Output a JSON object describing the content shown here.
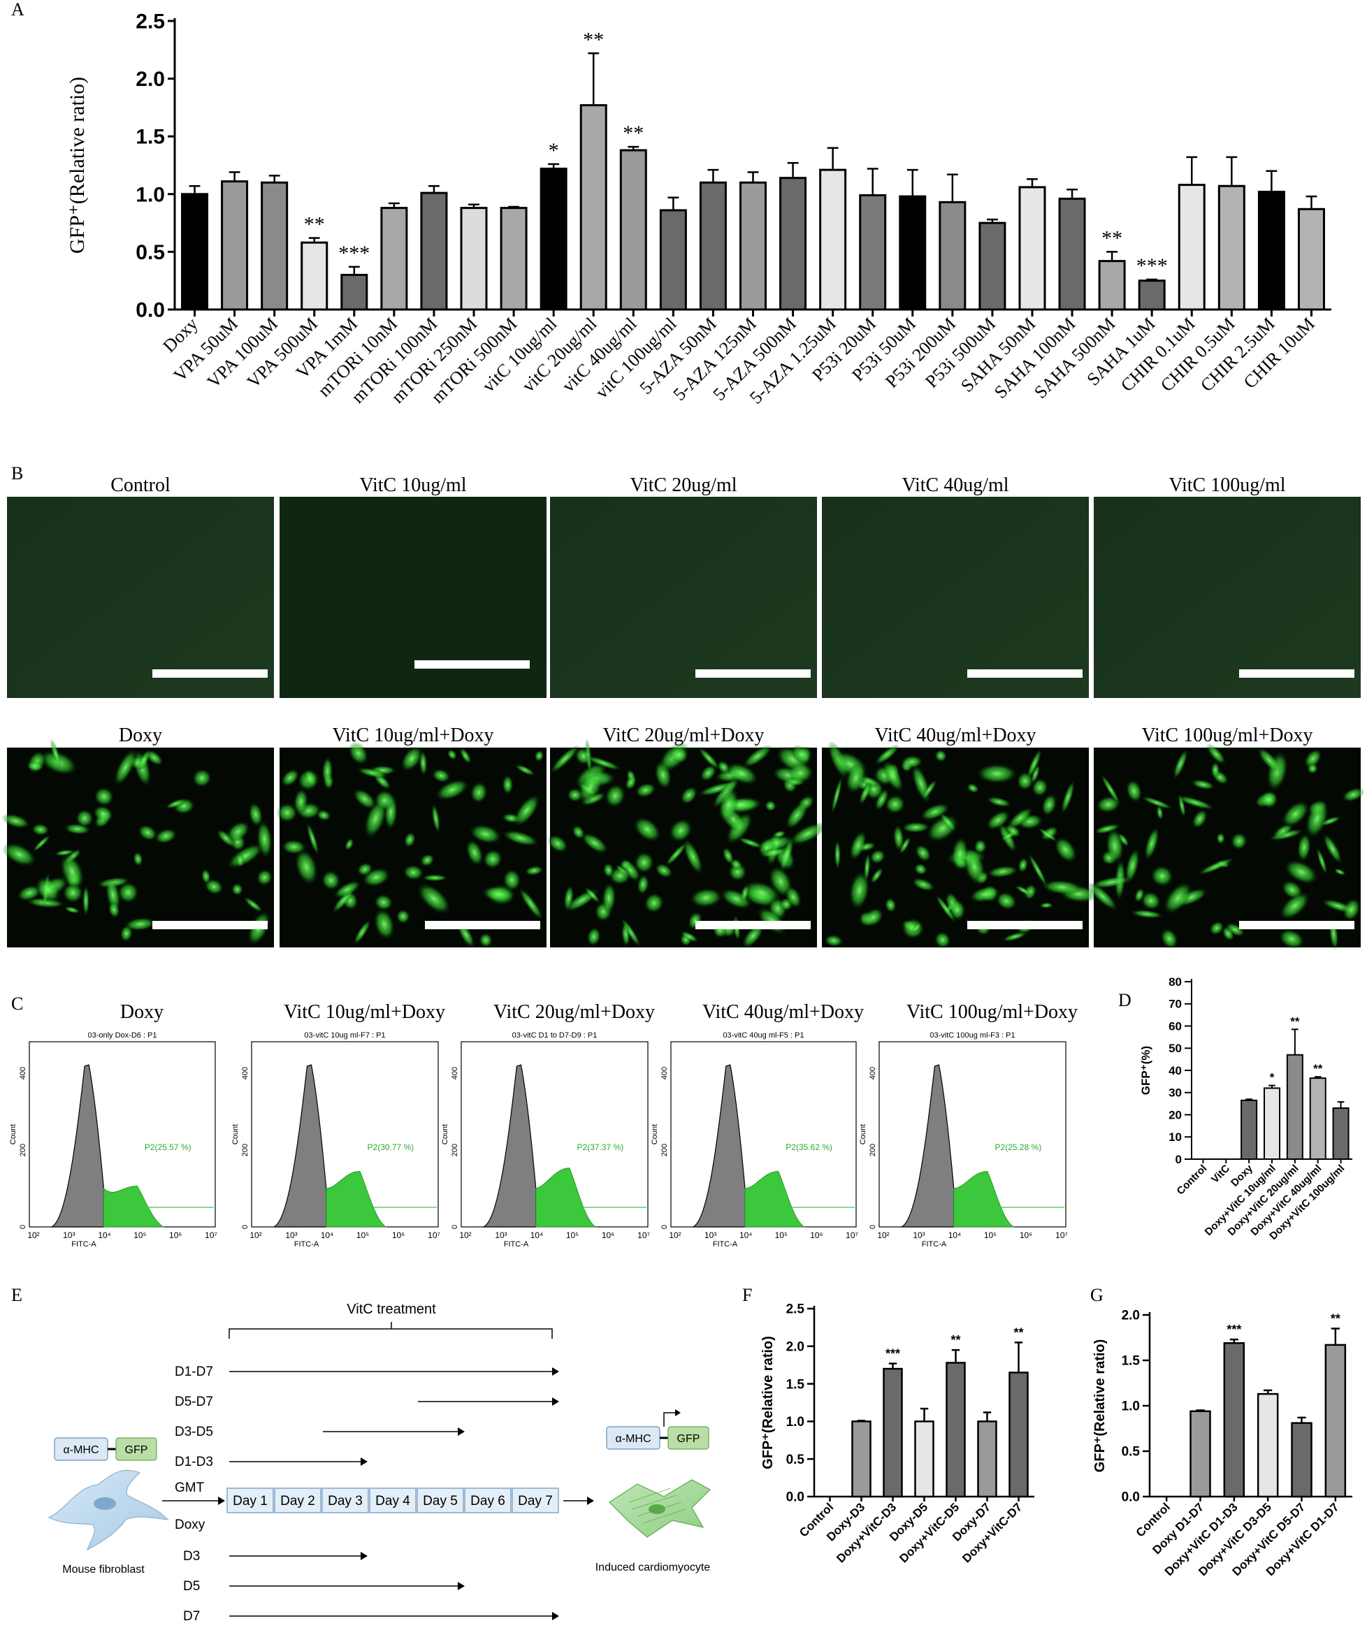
{
  "panels": {
    "A": {
      "label": "A"
    },
    "B": {
      "label": "B"
    },
    "C": {
      "label": "C"
    },
    "D": {
      "label": "D"
    },
    "E": {
      "label": "E"
    },
    "F": {
      "label": "F"
    },
    "G": {
      "label": "G"
    }
  },
  "colors": {
    "black": "#000000",
    "dark_gray": "#555555",
    "mid_gray": "#8c8c8c",
    "light_gray": "#e6e6e6",
    "silver": "#b3b3b3",
    "gfp_green": "#3cc83c",
    "histogram_gray": "#7f7f7f"
  },
  "chart_data": [
    {
      "panel": "A",
      "type": "bar",
      "ylabel": "GFP⁺(Relative ratio)",
      "ylim": [
        0,
        2.5
      ],
      "yticks": [
        "0.0",
        "0.5",
        "1.0",
        "1.5",
        "2.0",
        "2.5"
      ],
      "categories": [
        "Doxy",
        "VPA 50uM",
        "VPA 100uM",
        "VPA 500uM",
        "VPA 1mM",
        "mTORi 10nM",
        "mTORi 100nM",
        "mTORi 250nM",
        "mTORi 500nM",
        "vitC 10ug/ml",
        "vitC 20ug/ml",
        "vitC 40ug/ml",
        "vitC 100ug/ml",
        "5-AZA 50nM",
        "5-AZA 125nM",
        "5-AZA 500nM",
        "5-AZA 1.25uM",
        "P53i 20uM",
        "P53i 50uM",
        "P53i 200uM",
        "P53i 500uM",
        "SAHA 50nM",
        "SAHA 100nM",
        "SAHA 500nM",
        "SAHA 1uM",
        "CHIR 0.1uM",
        "CHIR 0.5uM",
        "CHIR 2.5uM",
        "CHIR 10uM"
      ],
      "values": [
        1.0,
        1.11,
        1.1,
        0.58,
        0.3,
        0.88,
        1.01,
        0.88,
        0.88,
        1.22,
        1.77,
        1.38,
        0.86,
        1.1,
        1.1,
        1.14,
        1.21,
        0.99,
        0.98,
        0.93,
        0.75,
        1.06,
        0.96,
        0.42,
        0.25,
        1.08,
        1.07,
        1.02,
        0.87
      ],
      "errors": [
        0.07,
        0.08,
        0.06,
        0.04,
        0.07,
        0.04,
        0.06,
        0.03,
        0.01,
        0.04,
        0.45,
        0.03,
        0.11,
        0.11,
        0.09,
        0.13,
        0.19,
        0.23,
        0.23,
        0.24,
        0.03,
        0.07,
        0.08,
        0.08,
        0.01,
        0.24,
        0.25,
        0.18,
        0.11
      ],
      "annotations": [
        "",
        "",
        "",
        "**",
        "***",
        "",
        "",
        "",
        "",
        "*",
        "**",
        "**",
        "",
        "",
        "",
        "",
        "",
        "",
        "",
        "",
        "",
        "",
        "",
        "**",
        "***",
        "",
        "",
        "",
        ""
      ]
    },
    {
      "panel": "D",
      "type": "bar",
      "ylabel": "GFP⁺(%)",
      "ylim": [
        0,
        80
      ],
      "yticks": [
        "0",
        "10",
        "20",
        "30",
        "40",
        "50",
        "60",
        "70",
        "80"
      ],
      "categories": [
        "Control",
        "VitC",
        "Doxy",
        "Doxy+VitC 10ug/ml",
        "Doxy+VitC 20ug/ml",
        "Doxy+VitC 40ug/ml",
        "Doxy+VitC 100ug/ml"
      ],
      "values": [
        0,
        0,
        26.5,
        32,
        47,
        36.5,
        23
      ],
      "errors": [
        0,
        0,
        0.5,
        1.2,
        11.5,
        0.6,
        2.8
      ],
      "annotations": [
        "",
        "",
        "",
        "*",
        "**",
        "**",
        ""
      ]
    },
    {
      "panel": "F",
      "type": "bar",
      "ylabel": "GFP⁺(Relative ratio)",
      "ylim": [
        0,
        2.5
      ],
      "yticks": [
        "0.0",
        "0.5",
        "1.0",
        "1.5",
        "2.0",
        "2.5"
      ],
      "categories": [
        "Control",
        "Doxy-D3",
        "Doxy+VitC-D3",
        "Doxy-D5",
        "Doxy+VitC-D5",
        "Doxy-D7",
        "Doxy+VitC-D7"
      ],
      "values": [
        0,
        1.0,
        1.7,
        1.0,
        1.78,
        1.0,
        1.65
      ],
      "errors": [
        0,
        0.01,
        0.07,
        0.17,
        0.17,
        0.12,
        0.4
      ],
      "annotations": [
        "",
        "",
        "***",
        "",
        "**",
        "",
        "**"
      ]
    },
    {
      "panel": "G",
      "type": "bar",
      "ylabel": "GFP⁺(Relative ratio)",
      "ylim": [
        0,
        2.0
      ],
      "yticks": [
        "0.0",
        "0.5",
        "1.0",
        "1.5",
        "2.0"
      ],
      "categories": [
        "Control",
        "Doxy D1-D7",
        "Doxy+VitC D1-D3",
        "Doxy+VitC D3-D5",
        "Doxy+VitC D5-D7",
        "Doxy+VitC D1-D7"
      ],
      "values": [
        0,
        0.94,
        1.69,
        1.13,
        0.81,
        1.67
      ],
      "errors": [
        0,
        0.01,
        0.04,
        0.04,
        0.06,
        0.18
      ],
      "annotations": [
        "",
        "",
        "***",
        "",
        "",
        "**"
      ]
    }
  ],
  "microscopy": {
    "top_row": [
      "Control",
      "VitC 10ug/ml",
      "VitC 20ug/ml",
      "VitC 40ug/ml",
      "VitC 100ug/ml"
    ],
    "bottom_row": [
      "Doxy",
      "VitC 10ug/ml+Doxy",
      "VitC 20ug/ml+Doxy",
      "VitC 40ug/ml+Doxy",
      "VitC 100ug/ml+Doxy"
    ]
  },
  "flow": {
    "x_axis_label": "FITC-A",
    "y_axis_label": "Count",
    "y_ticks": [
      "0",
      "200",
      "400"
    ],
    "x_ticks": [
      "10²",
      "10³",
      "10⁴",
      "10⁵",
      "10⁶",
      "10⁷"
    ],
    "panels": [
      {
        "title": "Doxy",
        "subtitle": "03-only Dox-D6 : P1",
        "gate": "P2(25.57 %)"
      },
      {
        "title": "VitC 10ug/ml+Doxy",
        "subtitle": "03-vitC 10ug ml-F7 : P1",
        "gate": "P2(30.77 %)"
      },
      {
        "title": "VitC 20ug/ml+Doxy",
        "subtitle": "03-vitC D1 to D7-D9 : P1",
        "gate": "P2(37.37 %)"
      },
      {
        "title": "VitC 40ug/ml+Doxy",
        "subtitle": "03-vitC 40ug ml-F5 : P1",
        "gate": "P2(35.62 %)"
      },
      {
        "title": "VitC 100ug/ml+Doxy",
        "subtitle": "03-vitC 100ug ml-F3 : P1",
        "gate": "P2(25.28 %)"
      }
    ]
  },
  "schematic": {
    "treatment_label": "VitC treatment",
    "vitc_windows": [
      "D1-D7",
      "D5-D7",
      "D3-D5",
      "D1-D3"
    ],
    "gmt_label": "GMT",
    "doxy_label": "Doxy",
    "days": [
      "Day 1",
      "Day 2",
      "Day 3",
      "Day 4",
      "Day 5",
      "Day 6",
      "Day 7"
    ],
    "doxy_windows": [
      "D3",
      "D5",
      "D7"
    ],
    "construct_promoter": "α-MHC",
    "construct_reporter": "GFP",
    "left_cell_label": "Mouse  fibroblast",
    "right_cell_label": "Induced cardiomyocyte"
  }
}
